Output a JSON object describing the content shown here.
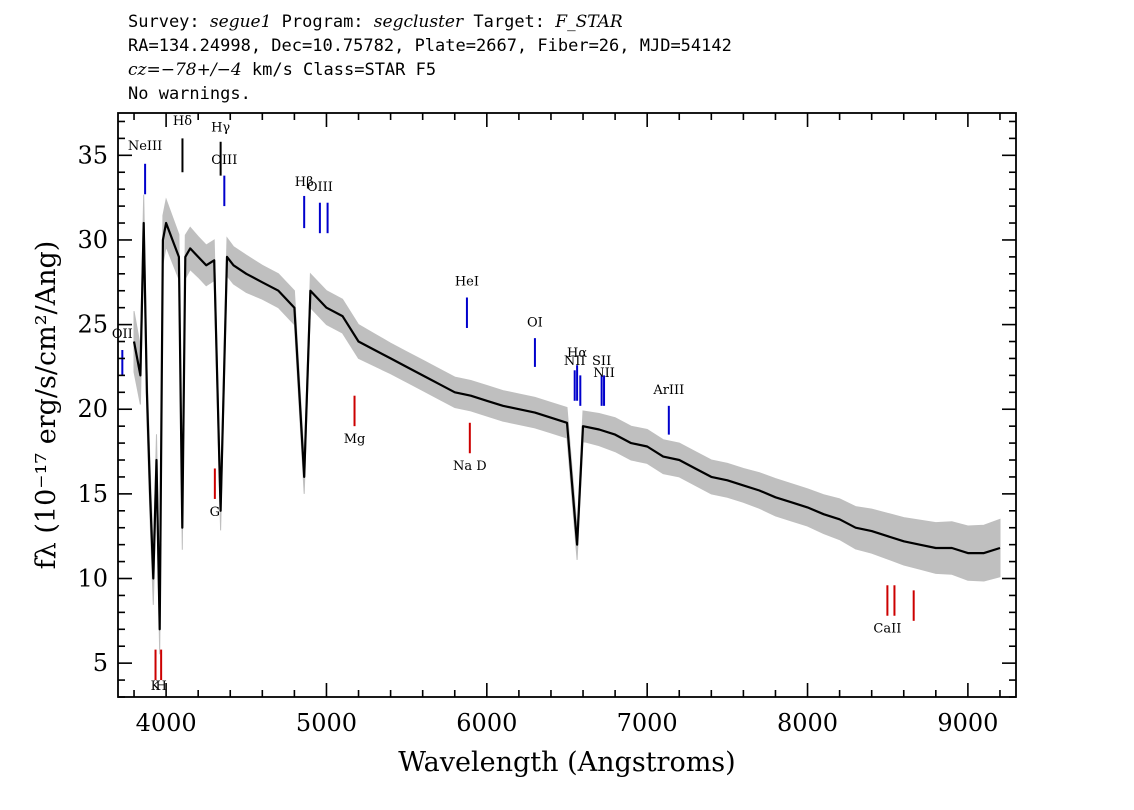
{
  "header": {
    "line1": {
      "survey_label": "Survey:",
      "survey": "segue1",
      "program_label": "Program:",
      "program": "segcluster",
      "target_label": "Target:",
      "target": "F_STAR"
    },
    "line2": "RA=134.24998, Dec=10.75782, Plate=2667, Fiber=26, MJD=54142",
    "line3": {
      "cz": "cz=−78+/−4",
      "rest": " km/s Class=STAR F5"
    },
    "line4": "No warnings."
  },
  "chart_data": {
    "type": "line",
    "xlabel": "Wavelength (Angstroms)",
    "ylabel": "fλ (10⁻¹⁷ erg/s/cm²/Ang)",
    "xlim": [
      3700,
      9300
    ],
    "ylim": [
      3,
      37.5
    ],
    "xticks": [
      4000,
      5000,
      6000,
      7000,
      8000,
      9000
    ],
    "yticks": [
      5,
      10,
      15,
      20,
      25,
      30,
      35
    ],
    "series": [
      {
        "role": "flux",
        "color": "#000000",
        "x": [
          3800,
          3840,
          3860,
          3880,
          3900,
          3920,
          3940,
          3960,
          3980,
          4000,
          4040,
          4080,
          4101,
          4120,
          4150,
          4200,
          4250,
          4300,
          4340,
          4380,
          4420,
          4500,
          4600,
          4700,
          4800,
          4861,
          4900,
          5000,
          5100,
          5200,
          5300,
          5400,
          5500,
          5600,
          5700,
          5800,
          5900,
          6000,
          6100,
          6200,
          6300,
          6400,
          6500,
          6563,
          6600,
          6700,
          6800,
          6900,
          7000,
          7100,
          7200,
          7300,
          7400,
          7500,
          7600,
          7700,
          7800,
          7900,
          8000,
          8100,
          8200,
          8300,
          8400,
          8500,
          8600,
          8700,
          8800,
          8900,
          9000,
          9100,
          9200
        ],
        "y": [
          24,
          22,
          31,
          21,
          15,
          10,
          17,
          7,
          30,
          31,
          30,
          29,
          13,
          29,
          29.5,
          29,
          28.5,
          28.8,
          14,
          29,
          28.5,
          28,
          27.5,
          27,
          26,
          16,
          27,
          26,
          25.5,
          24,
          23.5,
          23,
          22.5,
          22,
          21.5,
          21,
          20.8,
          20.5,
          20.2,
          20,
          19.8,
          19.5,
          19.2,
          12,
          19,
          18.8,
          18.5,
          18,
          17.8,
          17.2,
          17,
          16.5,
          16,
          15.8,
          15.5,
          15.2,
          14.8,
          14.5,
          14.2,
          13.8,
          13.5,
          13,
          12.8,
          12.5,
          12.2,
          12,
          11.8,
          11.8,
          11.5,
          11.5,
          11.8
        ]
      },
      {
        "role": "error",
        "color": "#bfbfbf",
        "x": [
          3800,
          3900,
          4000,
          4100,
          4200,
          4300,
          4400,
          4500,
          4600,
          4700,
          4800,
          4900,
          5000,
          5200,
          5400,
          5600,
          5800,
          6000,
          6200,
          6400,
          6600,
          6800,
          7000,
          7200,
          7400,
          7600,
          7800,
          8000,
          8200,
          8400,
          8600,
          8800,
          9000,
          9200
        ],
        "y": [
          1.8,
          1.6,
          1.4,
          1.3,
          1.2,
          1.2,
          1.1,
          1.1,
          1.0,
          1.0,
          1.0,
          1.0,
          1.0,
          1.0,
          0.9,
          0.9,
          0.9,
          0.9,
          0.9,
          0.9,
          0.9,
          1.0,
          1.0,
          1.0,
          1.0,
          1.0,
          1.1,
          1.1,
          1.2,
          1.3,
          1.4,
          1.5,
          1.6,
          1.7
        ]
      }
    ],
    "lines": [
      {
        "label": "NeIII",
        "wave": 3869,
        "kind": "emission",
        "color": "#0000cc",
        "y0": 32.7,
        "y1": 34.5,
        "ly": 35.3
      },
      {
        "label": "OII",
        "wave": 3727,
        "kind": "emission",
        "color": "#0000cc",
        "y0": 22,
        "y1": 23.5,
        "ly": 24.2
      },
      {
        "label": "Hδ",
        "wave": 4102,
        "kind": "emission",
        "color": "#000000",
        "y0": 34,
        "y1": 36,
        "ly": 36.8
      },
      {
        "label": "Hγ",
        "wave": 4340,
        "kind": "emission",
        "color": "#000000",
        "y0": 33.8,
        "y1": 35.8,
        "ly": 36.4
      },
      {
        "label": "OIII",
        "wave": 4363,
        "kind": "emission",
        "color": "#0000cc",
        "y0": 32,
        "y1": 33.8,
        "ly": 34.5
      },
      {
        "label": "Hβ",
        "wave": 4861,
        "kind": "emission",
        "color": "#0000cc",
        "y0": 30.7,
        "y1": 32.6,
        "ly": 33.2
      },
      {
        "label": "OIII",
        "wave": 4959,
        "kind": "emission",
        "color": "#0000cc",
        "y0": 30.4,
        "y1": 32.2,
        "ly": 32.9
      },
      {
        "label": "",
        "wave": 5007,
        "kind": "emission",
        "color": "#0000cc",
        "y0": 30.4,
        "y1": 32.2,
        "ly": 0
      },
      {
        "label": "HeI",
        "wave": 5876,
        "kind": "emission",
        "color": "#0000cc",
        "y0": 24.8,
        "y1": 26.6,
        "ly": 27.3
      },
      {
        "label": "OI",
        "wave": 6300,
        "kind": "emission",
        "color": "#0000cc",
        "y0": 22.5,
        "y1": 24.2,
        "ly": 24.9
      },
      {
        "label": "NII",
        "wave": 6548,
        "kind": "emission",
        "color": "#0000cc",
        "y0": 20.5,
        "y1": 22.3,
        "ly": 22.6
      },
      {
        "label": "Hα",
        "wave": 6563,
        "kind": "emission",
        "color": "#0000cc",
        "y0": 20.5,
        "y1": 22.6,
        "ly": 23.1
      },
      {
        "label": "",
        "wave": 6583,
        "kind": "emission",
        "color": "#0000cc",
        "y0": 20.2,
        "y1": 22.0,
        "ly": 0
      },
      {
        "label": "SII",
        "wave": 6716,
        "kind": "emission",
        "color": "#0000cc",
        "y0": 20.2,
        "y1": 22.0,
        "ly": 22.6
      },
      {
        "label": "NII",
        "wave": 6731,
        "kind": "emission",
        "color": "#0000cc",
        "y0": 20.2,
        "y1": 22.0,
        "ly": 21.9
      },
      {
        "label": "ArIII",
        "wave": 7135,
        "kind": "emission",
        "color": "#0000cc",
        "y0": 18.5,
        "y1": 20.2,
        "ly": 20.9
      },
      {
        "label": "K",
        "wave": 3934,
        "kind": "absorption",
        "color": "#cc0000",
        "y0": 4.0,
        "y1": 5.8,
        "ly": 3.4
      },
      {
        "label": "H",
        "wave": 3969,
        "kind": "absorption",
        "color": "#cc0000",
        "y0": 4.0,
        "y1": 5.8,
        "ly": 3.4
      },
      {
        "label": "G",
        "wave": 4304,
        "kind": "absorption",
        "color": "#cc0000",
        "y0": 14.7,
        "y1": 16.5,
        "ly": 13.7
      },
      {
        "label": "Mg",
        "wave": 5175,
        "kind": "absorption",
        "color": "#cc0000",
        "y0": 19.0,
        "y1": 20.8,
        "ly": 18.0
      },
      {
        "label": "Na  D",
        "wave": 5894,
        "kind": "absorption",
        "color": "#cc0000",
        "y0": 17.4,
        "y1": 19.2,
        "ly": 16.4
      },
      {
        "label": "CaII",
        "wave": 8498,
        "kind": "absorption",
        "color": "#cc0000",
        "y0": 7.8,
        "y1": 9.6,
        "ly": 6.8
      },
      {
        "label": "",
        "wave": 8542,
        "kind": "absorption",
        "color": "#cc0000",
        "y0": 7.8,
        "y1": 9.6,
        "ly": 0
      },
      {
        "label": "",
        "wave": 8662,
        "kind": "absorption",
        "color": "#cc0000",
        "y0": 7.5,
        "y1": 9.3,
        "ly": 0
      }
    ]
  }
}
